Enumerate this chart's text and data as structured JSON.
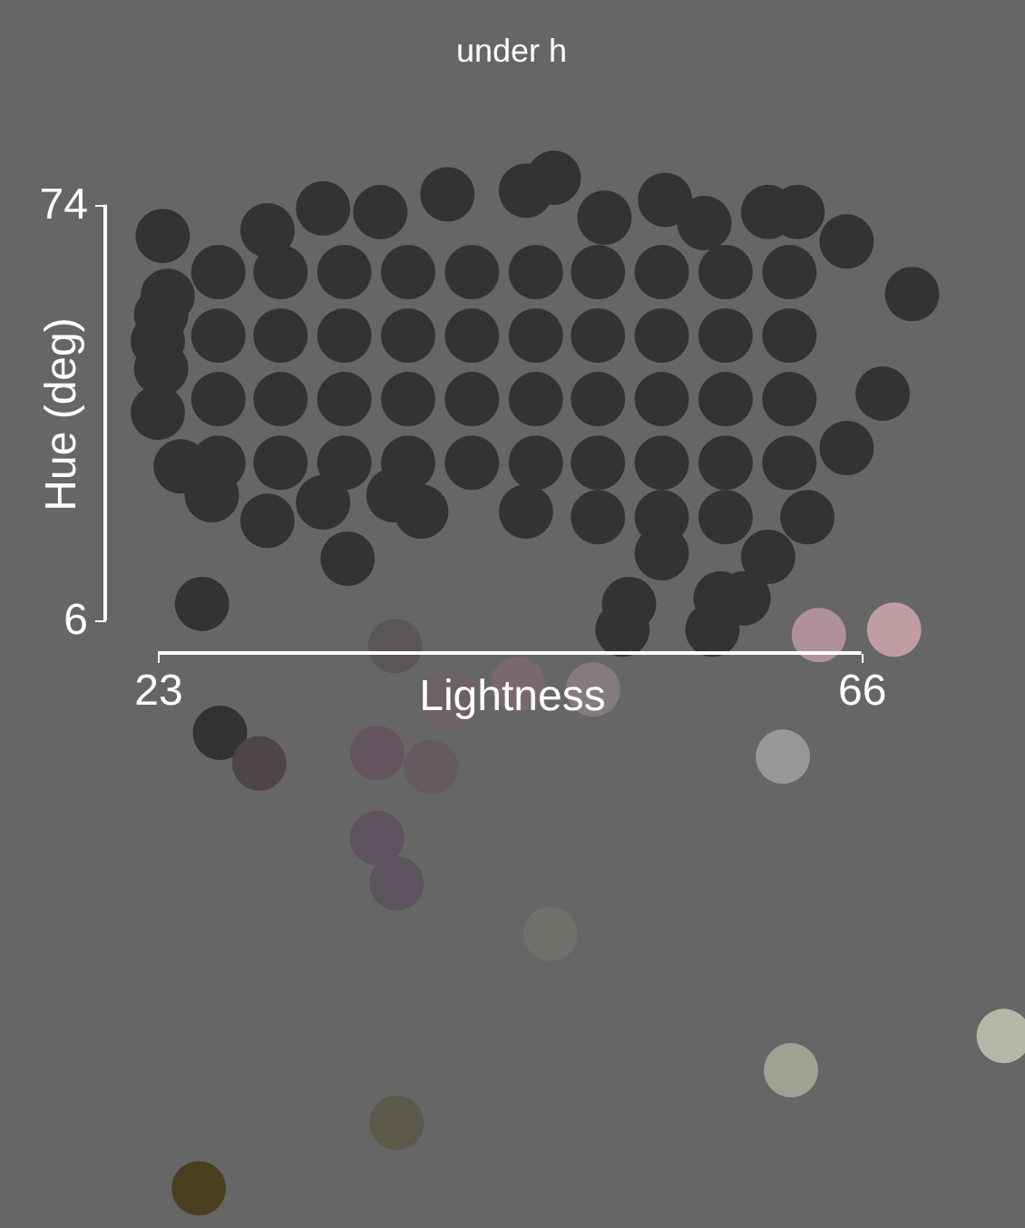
{
  "chart_data": {
    "type": "scatter",
    "title": "under  h",
    "xlabel": "Lightness",
    "ylabel": "Hue (deg)",
    "xlim": [
      23,
      76.0
    ],
    "ylim": [
      -93.4,
      107.5
    ],
    "xticks": [
      23,
      66
    ],
    "yticks": [
      6,
      74
    ],
    "marker": "circle",
    "grid": false,
    "legend": false,
    "x": [
      23.3,
      29.7,
      33.1,
      36.6,
      40.7,
      45.5,
      47.2,
      50.3,
      54.0,
      56.4,
      60.3,
      62.1,
      65.1,
      69.1,
      67.3,
      65.1,
      62.7,
      60.3,
      57.4,
      51.8,
      51.4,
      56.9,
      45.5,
      39.1,
      34.6,
      29.7,
      24.4,
      23.2,
      23.0,
      23.6,
      26.3,
      33.1,
      37.4,
      58.8,
      23.0,
      23.2,
      26.7,
      30.5,
      34.4,
      38.3,
      42.2,
      46.1,
      49.9,
      53.8,
      57.7,
      61.6,
      26.7,
      30.5,
      34.4,
      38.3,
      42.2,
      46.1,
      49.9,
      53.8,
      57.7,
      61.6,
      26.7,
      30.5,
      34.4,
      38.3,
      42.2,
      46.1,
      49.9,
      53.8,
      57.7,
      61.6,
      26.7,
      30.5,
      34.4,
      38.3,
      42.2,
      46.1,
      49.9,
      53.8,
      57.7,
      61.6,
      49.9,
      53.8,
      57.7,
      53.8,
      25.7,
      37.5,
      26.8,
      29.2,
      36.4,
      39.7,
      40.7,
      45.0,
      49.6,
      36.4,
      37.6,
      47.0,
      63.4,
      68.0,
      61.2,
      61.7,
      74.7,
      37.6,
      25.5
    ],
    "values": [
      68.9,
      69.8,
      73.4,
      72.8,
      75.7,
      76.3,
      78.4,
      71.9,
      74.8,
      71.0,
      72.8,
      72.8,
      68.0,
      59.4,
      43.1,
      34.2,
      22.9,
      16.4,
      9.6,
      8.7,
      4.5,
      4.5,
      23.8,
      23.8,
      16.1,
      22.3,
      31.2,
      47.2,
      51.7,
      59.1,
      26.5,
      25.3,
      26.5,
      9.6,
      40.0,
      56.0,
      63.0,
      63.0,
      63.0,
      63.0,
      63.0,
      63.0,
      63.0,
      63.0,
      63.0,
      63.0,
      52.6,
      52.6,
      52.6,
      52.6,
      52.6,
      52.6,
      52.6,
      52.6,
      52.6,
      52.6,
      42.2,
      42.2,
      42.2,
      42.2,
      42.2,
      42.2,
      42.2,
      42.2,
      42.2,
      42.2,
      31.8,
      31.8,
      31.8,
      31.8,
      31.8,
      31.8,
      31.8,
      31.8,
      31.8,
      31.8,
      22.9,
      22.9,
      22.9,
      17.0,
      8.7,
      1.8,
      -12.4,
      -17.4,
      -15.7,
      -18.0,
      -6.8,
      -4.4,
      -5.3,
      -29.6,
      -37.0,
      -45.3,
      3.6,
      4.5,
      -16.3,
      -67.6,
      -62.0,
      -76.2,
      -86.9
    ],
    "colors": [
      "#333333",
      "#333333",
      "#333333",
      "#333333",
      "#333333",
      "#333333",
      "#333333",
      "#333333",
      "#333333",
      "#333333",
      "#333333",
      "#333333",
      "#333333",
      "#333333",
      "#333333",
      "#333333",
      "#333333",
      "#333333",
      "#333333",
      "#333333",
      "#333333",
      "#333333",
      "#333333",
      "#333333",
      "#333333",
      "#333333",
      "#333333",
      "#333333",
      "#333333",
      "#333333",
      "#333333",
      "#333333",
      "#333333",
      "#333333",
      "#333333",
      "#333333",
      "#333333",
      "#333333",
      "#333333",
      "#333333",
      "#333333",
      "#333333",
      "#333333",
      "#333333",
      "#333333",
      "#333333",
      "#333333",
      "#333333",
      "#333333",
      "#333333",
      "#333333",
      "#333333",
      "#333333",
      "#333333",
      "#333333",
      "#333333",
      "#333333",
      "#333333",
      "#333333",
      "#333333",
      "#333333",
      "#333333",
      "#333333",
      "#333333",
      "#333333",
      "#333333",
      "#333333",
      "#333333",
      "#333333",
      "#333333",
      "#333333",
      "#333333",
      "#333333",
      "#333333",
      "#333333",
      "#333333",
      "#333333",
      "#333333",
      "#333333",
      "#333333",
      "#333333",
      "#5a5558",
      "#333333",
      "#4e454b",
      "#64545e",
      "#655a60",
      "#6f5f66",
      "#7a6870",
      "#857a7f",
      "#5f5360",
      "#5c535f",
      "#6e706c",
      "#b0909a",
      "#c09ca3",
      "#9a9799",
      "#a1a193",
      "#b4b8a6",
      "#5b5947",
      "#4a3f1f"
    ]
  }
}
